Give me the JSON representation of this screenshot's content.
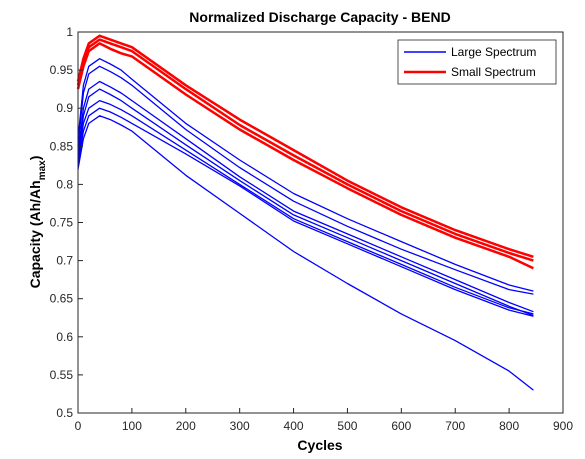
{
  "chart_data": {
    "type": "line",
    "title": "Normalized Discharge Capacity - BEND",
    "xlabel": "Cycles",
    "ylabel_main": "Capacity (Ah/Ah",
    "ylabel_sub": "max",
    "ylabel_close": ")",
    "xlim": [
      0,
      900
    ],
    "ylim": [
      0.5,
      1
    ],
    "xticks": [
      0,
      100,
      200,
      300,
      400,
      500,
      600,
      700,
      800,
      900
    ],
    "yticks": [
      0.5,
      0.55,
      0.6,
      0.65,
      0.7,
      0.75,
      0.8,
      0.85,
      0.9,
      0.95,
      1
    ],
    "grid": false,
    "legend_position": "top-right",
    "legend": [
      {
        "label": "Large Spectrum",
        "color": "#0000ff"
      },
      {
        "label": "Small Spectrum",
        "color": "#ff0000"
      }
    ],
    "series": [
      {
        "group": "Large Spectrum",
        "color": "#0000ff",
        "width": 1.3,
        "x": [
          0,
          10,
          20,
          40,
          60,
          80,
          100,
          200,
          300,
          400,
          500,
          600,
          700,
          800,
          845
        ],
        "y": [
          0.86,
          0.93,
          0.955,
          0.965,
          0.958,
          0.95,
          0.938,
          0.88,
          0.832,
          0.788,
          0.755,
          0.725,
          0.695,
          0.668,
          0.66
        ]
      },
      {
        "group": "Large Spectrum",
        "color": "#0000ff",
        "width": 1.3,
        "x": [
          0,
          10,
          20,
          40,
          60,
          80,
          100,
          200,
          300,
          400,
          500,
          600,
          700,
          800,
          845
        ],
        "y": [
          0.85,
          0.92,
          0.945,
          0.955,
          0.948,
          0.94,
          0.93,
          0.872,
          0.822,
          0.778,
          0.745,
          0.715,
          0.688,
          0.662,
          0.656
        ]
      },
      {
        "group": "Large Spectrum",
        "color": "#0000ff",
        "width": 1.3,
        "x": [
          0,
          10,
          20,
          40,
          60,
          80,
          100,
          200,
          300,
          400,
          500,
          600,
          700,
          800,
          845
        ],
        "y": [
          0.84,
          0.9,
          0.925,
          0.935,
          0.928,
          0.92,
          0.91,
          0.86,
          0.81,
          0.765,
          0.735,
          0.705,
          0.675,
          0.645,
          0.633
        ]
      },
      {
        "group": "Large Spectrum",
        "color": "#0000ff",
        "width": 1.3,
        "x": [
          0,
          10,
          20,
          40,
          60,
          80,
          100,
          200,
          300,
          400,
          500,
          600,
          700,
          800,
          845
        ],
        "y": [
          0.835,
          0.89,
          0.915,
          0.925,
          0.918,
          0.91,
          0.9,
          0.852,
          0.805,
          0.76,
          0.73,
          0.7,
          0.67,
          0.64,
          0.628
        ]
      },
      {
        "group": "Large Spectrum",
        "color": "#0000ff",
        "width": 1.3,
        "x": [
          0,
          10,
          20,
          40,
          60,
          80,
          100,
          200,
          300,
          400,
          500,
          600,
          700,
          800,
          845
        ],
        "y": [
          0.83,
          0.88,
          0.9,
          0.91,
          0.905,
          0.898,
          0.89,
          0.845,
          0.8,
          0.755,
          0.725,
          0.695,
          0.665,
          0.638,
          0.63
        ]
      },
      {
        "group": "Large Spectrum",
        "color": "#0000ff",
        "width": 1.3,
        "x": [
          0,
          10,
          20,
          40,
          60,
          80,
          100,
          200,
          300,
          400,
          500,
          600,
          700,
          800,
          845
        ],
        "y": [
          0.825,
          0.87,
          0.89,
          0.9,
          0.895,
          0.888,
          0.88,
          0.84,
          0.798,
          0.752,
          0.722,
          0.692,
          0.662,
          0.635,
          0.627
        ]
      },
      {
        "group": "Large Spectrum",
        "color": "#0000ff",
        "width": 1.3,
        "x": [
          0,
          10,
          20,
          40,
          60,
          80,
          100,
          200,
          300,
          400,
          500,
          600,
          700,
          800,
          845
        ],
        "y": [
          0.82,
          0.86,
          0.88,
          0.89,
          0.885,
          0.878,
          0.87,
          0.812,
          0.762,
          0.712,
          0.67,
          0.63,
          0.595,
          0.555,
          0.53
        ]
      },
      {
        "group": "Small Spectrum",
        "color": "#ff0000",
        "width": 2.5,
        "x": [
          0,
          10,
          20,
          40,
          60,
          80,
          100,
          200,
          300,
          400,
          500,
          600,
          700,
          800,
          845
        ],
        "y": [
          0.935,
          0.965,
          0.985,
          0.995,
          0.99,
          0.985,
          0.98,
          0.93,
          0.885,
          0.845,
          0.805,
          0.77,
          0.74,
          0.715,
          0.705
        ]
      },
      {
        "group": "Small Spectrum",
        "color": "#ff0000",
        "width": 2.5,
        "x": [
          0,
          10,
          20,
          40,
          60,
          80,
          100,
          200,
          300,
          400,
          500,
          600,
          700,
          800,
          845
        ],
        "y": [
          0.93,
          0.96,
          0.98,
          0.99,
          0.985,
          0.98,
          0.975,
          0.925,
          0.878,
          0.838,
          0.8,
          0.765,
          0.735,
          0.71,
          0.7
        ]
      },
      {
        "group": "Small Spectrum",
        "color": "#ff0000",
        "width": 2.5,
        "x": [
          0,
          10,
          20,
          40,
          60,
          80,
          100,
          200,
          300,
          400,
          500,
          600,
          700,
          800,
          845
        ],
        "y": [
          0.925,
          0.955,
          0.975,
          0.985,
          0.978,
          0.972,
          0.968,
          0.918,
          0.872,
          0.832,
          0.795,
          0.76,
          0.73,
          0.705,
          0.69
        ]
      }
    ]
  }
}
